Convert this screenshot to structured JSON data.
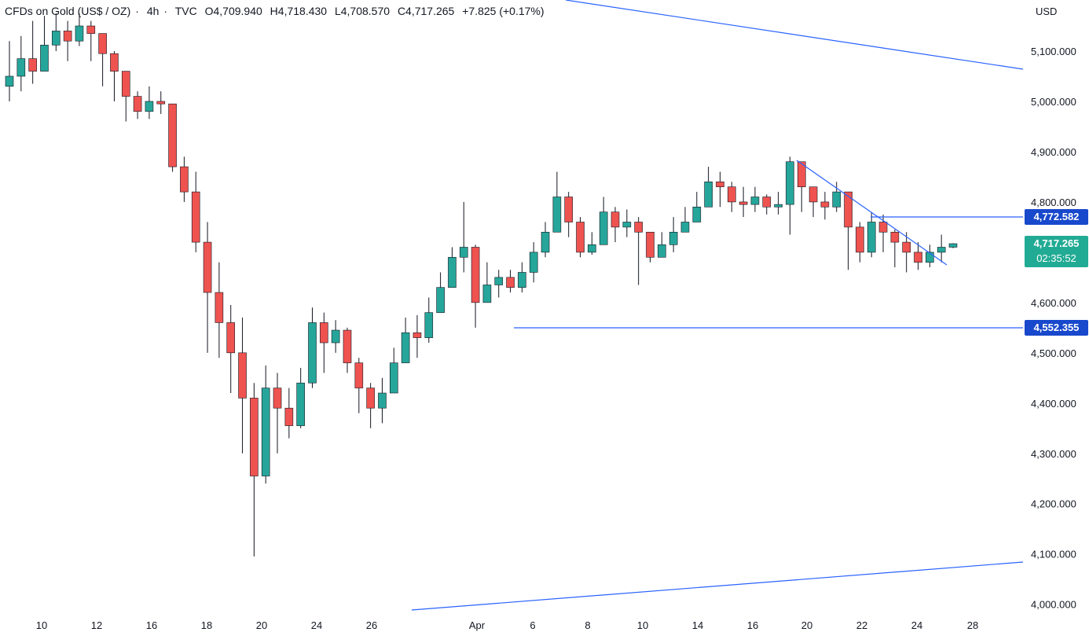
{
  "header": {
    "symbol": "CFDs on Gold (US$ / OZ)",
    "interval": "4h",
    "source": "TVC",
    "open": "O4,709.940",
    "high": "H4,718.430",
    "low": "L4,708.570",
    "close": "C4,717.265",
    "change": "+7.825 (+0.17%)"
  },
  "axis": {
    "currency": "USD"
  },
  "price_tags": {
    "upper_level": "4,772.582",
    "current_price": "4,717.265",
    "countdown": "02:35:52",
    "lower_level": "4,552.355"
  },
  "colors": {
    "up": "#26a69a",
    "down": "#ef5350",
    "line": "#2962ff",
    "current": "#22ab94",
    "level_tag": "#1848cc"
  },
  "chart_data": {
    "type": "candlestick",
    "title": "CFDs on Gold (US$ / OZ) · 4h · TVC",
    "ylabel": "USD",
    "ylim": [
      3995,
      5180
    ],
    "y_ticks": [
      "4,000.000",
      "4,100.000",
      "4,200.000",
      "4,300.000",
      "4,400.000",
      "4,500.000",
      "4,600.000",
      "4,700.000",
      "4,800.000",
      "4,900.000",
      "5,000.000",
      "5,100.000"
    ],
    "y_tick_values": [
      4000,
      4100,
      4200,
      4300,
      4400,
      4500,
      4600,
      4700,
      4800,
      4900,
      5000,
      5100
    ],
    "x_ticks": [
      "10",
      "12",
      "16",
      "18",
      "20",
      "24",
      "26",
      "Apr",
      "6",
      "8",
      "10",
      "14",
      "16",
      "20",
      "22",
      "24",
      "28"
    ],
    "candles_close": [
      5050,
      5085,
      5060,
      5112,
      5140,
      5120,
      5150,
      5135,
      5095,
      5060,
      5010,
      4980,
      5000,
      4995,
      4870,
      4820,
      4720,
      4620,
      4560,
      4500,
      4410,
      4255,
      4430,
      4390,
      4355,
      4440,
      4560,
      4520,
      4545,
      4480,
      4430,
      4390,
      4420,
      4480,
      4540,
      4530,
      4580,
      4630,
      4690,
      4710,
      4600,
      4635,
      4650,
      4630,
      4660,
      4700,
      4740,
      4810,
      4760,
      4700,
      4715,
      4780,
      4750,
      4760,
      4740,
      4690,
      4715,
      4740,
      4760,
      4790,
      4840,
      4830,
      4800,
      4795,
      4810,
      4790,
      4795,
      4880,
      4830,
      4800,
      4790,
      4820,
      4750,
      4700,
      4760,
      4740,
      4720,
      4700,
      4680,
      4700,
      4710,
      4717
    ],
    "candles_high": [
      5120,
      5130,
      5160,
      5170,
      5175,
      5160,
      5175,
      5160,
      5130,
      5100,
      5045,
      5020,
      5030,
      5020,
      4995,
      4890,
      4860,
      4760,
      4680,
      4595,
      4570,
      4440,
      4475,
      4460,
      4430,
      4470,
      4590,
      4580,
      4565,
      4550,
      4490,
      4440,
      4450,
      4510,
      4570,
      4575,
      4610,
      4660,
      4710,
      4800,
      4715,
      4680,
      4665,
      4665,
      4680,
      4720,
      4760,
      4860,
      4820,
      4770,
      4740,
      4810,
      4790,
      4785,
      4770,
      4730,
      4740,
      4770,
      4790,
      4820,
      4870,
      4860,
      4840,
      4830,
      4830,
      4815,
      4820,
      4890,
      4880,
      4830,
      4820,
      4840,
      4820,
      4760,
      4780,
      4775,
      4745,
      4740,
      4720,
      4715,
      4735,
      4718
    ],
    "candles_low": [
      5000,
      5020,
      5035,
      5075,
      5100,
      5080,
      5110,
      5080,
      5030,
      5000,
      4960,
      4965,
      4965,
      4975,
      4860,
      4800,
      4700,
      4500,
      4490,
      4420,
      4300,
      4095,
      4240,
      4300,
      4330,
      4350,
      4430,
      4460,
      4500,
      4460,
      4380,
      4350,
      4360,
      4420,
      4480,
      4490,
      4520,
      4580,
      4640,
      4660,
      4550,
      4600,
      4610,
      4620,
      4620,
      4640,
      4690,
      4750,
      4730,
      4690,
      4695,
      4750,
      4720,
      4730,
      4635,
      4680,
      4690,
      4700,
      4740,
      4770,
      4820,
      4790,
      4780,
      4770,
      4780,
      4775,
      4775,
      4735,
      4780,
      4770,
      4765,
      4780,
      4665,
      4680,
      4690,
      4700,
      4670,
      4660,
      4665,
      4670,
      4680,
      4708
    ]
  }
}
